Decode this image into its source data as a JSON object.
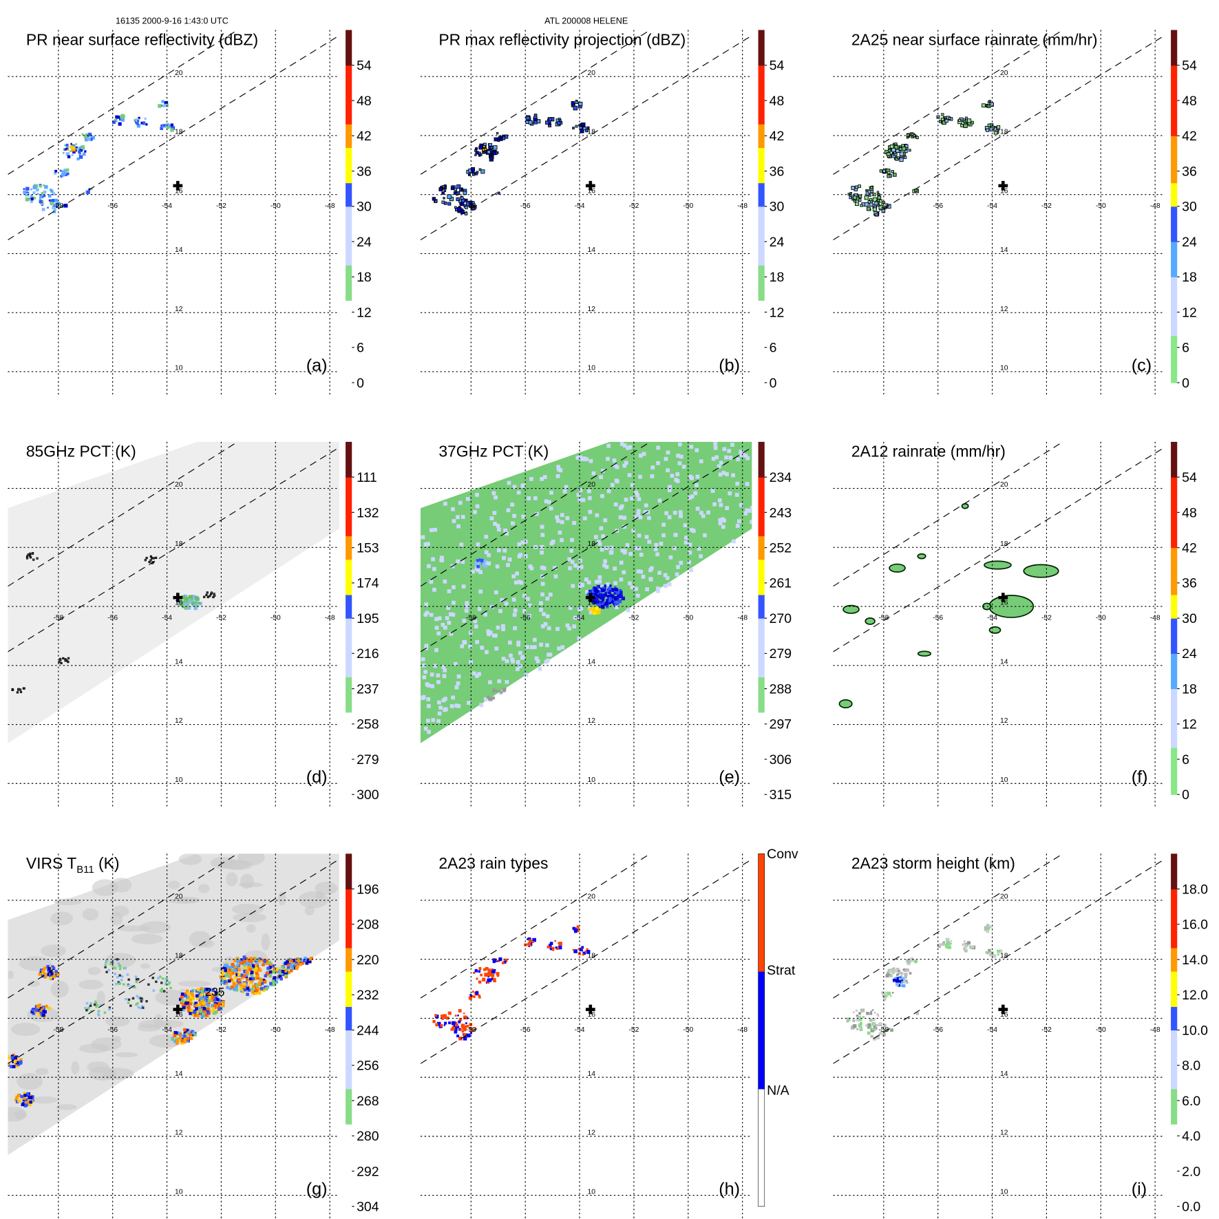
{
  "header": {
    "left": "16135 2000-9-16 1:43:0 UTC",
    "center": "ATL 200008 HELENE"
  },
  "axes": {
    "lon_labels": [
      "-58",
      "-56",
      "-54",
      "-52",
      "-50",
      "-48"
    ],
    "lon_values": [
      -58,
      -56,
      -54,
      -52,
      -50,
      -48
    ],
    "lat_labels": [
      "20",
      "18",
      "16",
      "14",
      "12",
      "10"
    ],
    "lat_values": [
      20,
      18,
      16,
      14,
      12,
      10
    ],
    "storm_center": {
      "lon": -53.6,
      "lat": 16.3
    }
  },
  "chart_data": [
    {
      "type": "heatmap",
      "id": "a",
      "title": "PR near surface reflectivity (dBZ)",
      "label": "(a)",
      "field": "pr_sfc",
      "colorbar_ticks": [
        "0",
        "6",
        "12",
        "18",
        "24",
        "30",
        "36",
        "42",
        "48",
        "54"
      ],
      "range": [
        0,
        60
      ],
      "stops": [
        [
          0,
          "#ffffff"
        ],
        [
          0.25,
          "#999999"
        ],
        [
          0.25,
          "#88dd88"
        ],
        [
          0.33,
          "#66bb66"
        ],
        [
          0.33,
          "#ccd8ff"
        ],
        [
          0.5,
          "#55aaff"
        ],
        [
          0.5,
          "#3355ff"
        ],
        [
          0.58,
          "#0000cc"
        ],
        [
          0.58,
          "#ffff00"
        ],
        [
          0.66,
          "#ffcc00"
        ],
        [
          0.66,
          "#ff9900"
        ],
        [
          0.75,
          "#ff6600"
        ],
        [
          0.75,
          "#ff2200"
        ],
        [
          0.9,
          "#aa0000"
        ],
        [
          0.9,
          "#661111"
        ],
        [
          1,
          "#4a1a1a"
        ]
      ]
    },
    {
      "type": "heatmap",
      "id": "b",
      "title": "PR max reflectivity projection (dBZ)",
      "label": "(b)",
      "field": "pr_max",
      "colorbar_ticks": [
        "0",
        "6",
        "12",
        "18",
        "24",
        "30",
        "36",
        "42",
        "48",
        "54"
      ],
      "range": [
        0,
        60
      ],
      "stops": [
        [
          0,
          "#ffffff"
        ],
        [
          0.25,
          "#999999"
        ],
        [
          0.25,
          "#88dd88"
        ],
        [
          0.33,
          "#66bb66"
        ],
        [
          0.33,
          "#ccd8ff"
        ],
        [
          0.5,
          "#55aaff"
        ],
        [
          0.5,
          "#3355ff"
        ],
        [
          0.58,
          "#0000cc"
        ],
        [
          0.58,
          "#ffff00"
        ],
        [
          0.66,
          "#ffcc00"
        ],
        [
          0.66,
          "#ff9900"
        ],
        [
          0.75,
          "#ff6600"
        ],
        [
          0.75,
          "#ff2200"
        ],
        [
          0.9,
          "#aa0000"
        ],
        [
          0.9,
          "#661111"
        ],
        [
          1,
          "#4a1a1a"
        ]
      ]
    },
    {
      "type": "heatmap",
      "id": "c",
      "title": "2A25 near surface rainrate (mm/hr)",
      "label": "(c)",
      "field": "rain25",
      "colorbar_ticks": [
        "0",
        "6",
        "12",
        "18",
        "24",
        "30",
        "36",
        "42",
        "48",
        "54"
      ],
      "range": [
        0,
        60
      ],
      "stops": [
        [
          0,
          "#88e888"
        ],
        [
          0.12,
          "#66bb66"
        ],
        [
          0.12,
          "#ccd8ff"
        ],
        [
          0.3,
          "#55aaff"
        ],
        [
          0.4,
          "#3355ff"
        ],
        [
          0.5,
          "#0000cc"
        ],
        [
          0.5,
          "#ffff00"
        ],
        [
          0.58,
          "#ffcc00"
        ],
        [
          0.58,
          "#ff9900"
        ],
        [
          0.7,
          "#ff6600"
        ],
        [
          0.7,
          "#ff2200"
        ],
        [
          0.9,
          "#aa0000"
        ],
        [
          0.9,
          "#661111"
        ],
        [
          1,
          "#4a1a1a"
        ]
      ]
    },
    {
      "type": "heatmap",
      "id": "d",
      "title": "85GHz PCT (K)",
      "label": "(d)",
      "field": "pct85",
      "colorbar_ticks": [
        "300",
        "279",
        "258",
        "237",
        "216",
        "195",
        "174",
        "153",
        "132",
        "111"
      ],
      "range": [
        300,
        90
      ],
      "stops": [
        [
          0,
          "#ffffff"
        ],
        [
          0.25,
          "#999999"
        ],
        [
          0.25,
          "#88dd88"
        ],
        [
          0.33,
          "#66bb66"
        ],
        [
          0.33,
          "#ccd8ff"
        ],
        [
          0.5,
          "#55aaff"
        ],
        [
          0.5,
          "#3355ff"
        ],
        [
          0.58,
          "#0000cc"
        ],
        [
          0.58,
          "#ffff00"
        ],
        [
          0.66,
          "#ffcc00"
        ],
        [
          0.66,
          "#ff9900"
        ],
        [
          0.75,
          "#ff6600"
        ],
        [
          0.75,
          "#ff2200"
        ],
        [
          0.9,
          "#aa0000"
        ],
        [
          0.9,
          "#661111"
        ],
        [
          1,
          "#4a1a1a"
        ]
      ]
    },
    {
      "type": "heatmap",
      "id": "e",
      "title": "37GHz PCT (K)",
      "label": "(e)",
      "field": "pct37",
      "colorbar_ticks": [
        "315",
        "306",
        "297",
        "288",
        "279",
        "270",
        "261",
        "252",
        "243",
        "234"
      ],
      "range": [
        315,
        225
      ],
      "stops": [
        [
          0,
          "#ffffff"
        ],
        [
          0.25,
          "#999999"
        ],
        [
          0.25,
          "#88dd88"
        ],
        [
          0.33,
          "#66bb66"
        ],
        [
          0.33,
          "#ccd8ff"
        ],
        [
          0.5,
          "#55aaff"
        ],
        [
          0.5,
          "#3355ff"
        ],
        [
          0.58,
          "#0000cc"
        ],
        [
          0.58,
          "#ffff00"
        ],
        [
          0.66,
          "#ffcc00"
        ],
        [
          0.66,
          "#ff9900"
        ],
        [
          0.75,
          "#ff6600"
        ],
        [
          0.75,
          "#ff2200"
        ],
        [
          0.9,
          "#aa0000"
        ],
        [
          0.9,
          "#661111"
        ],
        [
          1,
          "#4a1a1a"
        ]
      ]
    },
    {
      "type": "heatmap",
      "id": "f",
      "title": "2A12 rainrate (mm/hr)",
      "label": "(f)",
      "field": "rain12",
      "colorbar_ticks": [
        "0",
        "6",
        "12",
        "18",
        "24",
        "30",
        "36",
        "42",
        "48",
        "54"
      ],
      "range": [
        0,
        60
      ],
      "stops": [
        [
          0,
          "#88e888"
        ],
        [
          0.12,
          "#66bb66"
        ],
        [
          0.12,
          "#ccd8ff"
        ],
        [
          0.3,
          "#55aaff"
        ],
        [
          0.4,
          "#3355ff"
        ],
        [
          0.5,
          "#0000cc"
        ],
        [
          0.5,
          "#ffff00"
        ],
        [
          0.58,
          "#ffcc00"
        ],
        [
          0.58,
          "#ff9900"
        ],
        [
          0.7,
          "#ff6600"
        ],
        [
          0.7,
          "#ff2200"
        ],
        [
          0.9,
          "#aa0000"
        ],
        [
          0.9,
          "#661111"
        ],
        [
          1,
          "#4a1a1a"
        ]
      ]
    },
    {
      "type": "heatmap",
      "id": "g",
      "title": "VIRS T",
      "title_sub": "B11",
      "title_end": " (K)",
      "label": "(g)",
      "field": "virs",
      "contour_label": "235",
      "colorbar_ticks": [
        "304",
        "292",
        "280",
        "268",
        "256",
        "244",
        "232",
        "220",
        "208",
        "196"
      ],
      "range": [
        304,
        184
      ],
      "stops": [
        [
          0,
          "#ffffff"
        ],
        [
          0.25,
          "#999999"
        ],
        [
          0.25,
          "#88dd88"
        ],
        [
          0.33,
          "#66bb66"
        ],
        [
          0.33,
          "#ccd8ff"
        ],
        [
          0.5,
          "#55aaff"
        ],
        [
          0.5,
          "#3355ff"
        ],
        [
          0.58,
          "#0000cc"
        ],
        [
          0.58,
          "#ffff00"
        ],
        [
          0.66,
          "#ffcc00"
        ],
        [
          0.66,
          "#ff9900"
        ],
        [
          0.75,
          "#ff6600"
        ],
        [
          0.75,
          "#ff2200"
        ],
        [
          0.9,
          "#aa0000"
        ],
        [
          0.9,
          "#661111"
        ],
        [
          1,
          "#4a1a1a"
        ]
      ]
    },
    {
      "type": "heatmap",
      "id": "h",
      "title": "2A23 rain types",
      "label": "(h)",
      "field": "raintype",
      "categories": [
        "N/A",
        "Strat",
        "Conv"
      ],
      "stops": [
        [
          0,
          "#ffffff"
        ],
        [
          0.33,
          "#ffffff"
        ],
        [
          0.33,
          "#0000ff"
        ],
        [
          0.67,
          "#0000ff"
        ],
        [
          0.67,
          "#ff4400"
        ],
        [
          1,
          "#ff4400"
        ]
      ]
    },
    {
      "type": "heatmap",
      "id": "i",
      "title": "2A23 storm height (km)",
      "label": "(i)",
      "field": "stormh",
      "colorbar_ticks": [
        "0.0",
        "2.0",
        "4.0",
        "6.0",
        "8.0",
        "10.0",
        "12.0",
        "14.0",
        "16.0",
        "18.0"
      ],
      "range": [
        0,
        20
      ],
      "stops": [
        [
          0,
          "#ffffff"
        ],
        [
          0.25,
          "#999999"
        ],
        [
          0.25,
          "#88dd88"
        ],
        [
          0.33,
          "#66bb66"
        ],
        [
          0.33,
          "#ccd8ff"
        ],
        [
          0.5,
          "#55aaff"
        ],
        [
          0.5,
          "#3355ff"
        ],
        [
          0.58,
          "#0000cc"
        ],
        [
          0.58,
          "#ffff00"
        ],
        [
          0.66,
          "#ffcc00"
        ],
        [
          0.66,
          "#ff9900"
        ],
        [
          0.75,
          "#ff6600"
        ],
        [
          0.75,
          "#ff2200"
        ],
        [
          0.9,
          "#aa0000"
        ],
        [
          0.9,
          "#661111"
        ],
        [
          1,
          "#4a1a1a"
        ]
      ]
    }
  ]
}
